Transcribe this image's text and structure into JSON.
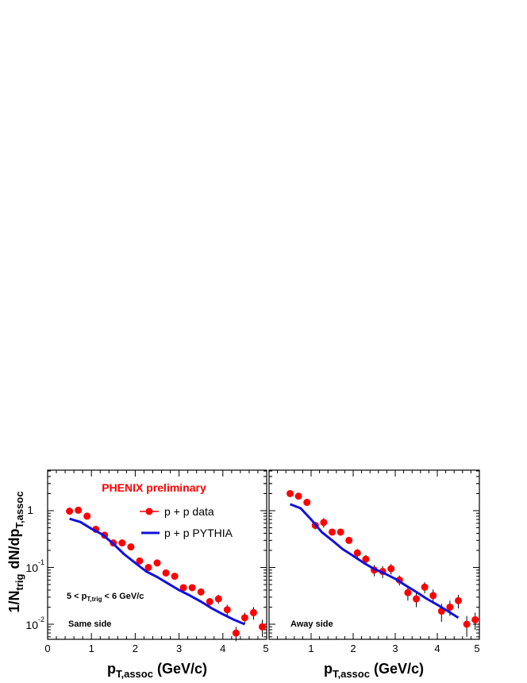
{
  "chart_data": [
    {
      "type": "scatter",
      "panel": "Same side",
      "title": "",
      "xlabel": "p_T,assoc (GeV/c)",
      "ylabel": "1/N_trig dN/dp_T,assoc",
      "xlim": [
        0,
        5
      ],
      "ylim": [
        0.005,
        5
      ],
      "yscale": "log",
      "xticks": [
        "0",
        "1",
        "2",
        "3",
        "4",
        "5"
      ],
      "yticks": [
        "10^-2",
        "10^-1",
        "1"
      ],
      "annotations": {
        "experiment": "PHENIX preliminary",
        "trigger_cut": "5 < p_T,trig < 6 GeV/c",
        "side": "Same side"
      },
      "legend": {
        "placement": "top-right",
        "entries": [
          "p + p data",
          "p + p PYTHIA"
        ]
      },
      "series": [
        {
          "name": "p + p data",
          "kind": "points",
          "color": "#ff0000",
          "x": [
            0.5,
            0.7,
            0.9,
            1.1,
            1.3,
            1.5,
            1.7,
            1.9,
            2.1,
            2.3,
            2.5,
            2.7,
            2.9,
            3.1,
            3.3,
            3.5,
            3.7,
            3.9,
            4.1,
            4.3,
            4.5,
            4.7,
            4.9
          ],
          "y": [
            0.98,
            1.02,
            0.8,
            0.47,
            0.37,
            0.27,
            0.27,
            0.23,
            0.13,
            0.1,
            0.12,
            0.08,
            0.07,
            0.044,
            0.044,
            0.037,
            0.025,
            0.028,
            0.018,
            0.007,
            0.013,
            0.016,
            0.009
          ],
          "err": [
            0,
            0,
            0,
            0,
            0,
            0,
            0,
            0,
            0,
            0,
            0,
            0,
            0,
            0.004,
            0.004,
            0.005,
            0.004,
            0.005,
            0.004,
            0.002,
            0.003,
            0.004,
            0.003
          ]
        },
        {
          "name": "p + p PYTHIA",
          "kind": "line",
          "color": "#1111dd",
          "x": [
            0.5,
            0.75,
            1.0,
            1.25,
            1.5,
            1.75,
            2.0,
            2.25,
            2.5,
            2.75,
            3.0,
            3.25,
            3.5,
            3.75,
            4.0,
            4.25,
            4.5
          ],
          "y": [
            0.72,
            0.63,
            0.48,
            0.38,
            0.26,
            0.17,
            0.12,
            0.085,
            0.068,
            0.052,
            0.04,
            0.032,
            0.025,
            0.019,
            0.015,
            0.012,
            0.01
          ]
        }
      ]
    },
    {
      "type": "scatter",
      "panel": "Away side",
      "title": "",
      "xlabel": "p_T,assoc (GeV/c)",
      "ylabel": "",
      "xlim": [
        0,
        5
      ],
      "ylim": [
        0.005,
        5
      ],
      "yscale": "log",
      "xticks": [
        "1",
        "2",
        "3",
        "4",
        "5"
      ],
      "annotations": {
        "side": "Away side"
      },
      "series": [
        {
          "name": "p + p data",
          "kind": "points",
          "color": "#ff0000",
          "x": [
            0.5,
            0.7,
            0.9,
            1.1,
            1.3,
            1.5,
            1.7,
            1.9,
            2.1,
            2.3,
            2.5,
            2.7,
            2.9,
            3.1,
            3.3,
            3.5,
            3.7,
            3.9,
            4.1,
            4.3,
            4.5,
            4.7,
            4.9
          ],
          "y": [
            2.0,
            1.8,
            1.4,
            0.55,
            0.62,
            0.42,
            0.42,
            0.3,
            0.18,
            0.14,
            0.09,
            0.085,
            0.095,
            0.06,
            0.036,
            0.028,
            0.045,
            0.032,
            0.017,
            0.02,
            0.026,
            0.01,
            0.012
          ],
          "err": [
            0,
            0,
            0,
            0.08,
            0.12,
            0.04,
            0.04,
            0.03,
            0.03,
            0.025,
            0.02,
            0.02,
            0.02,
            0.012,
            0.01,
            0.008,
            0.01,
            0.009,
            0.006,
            0.006,
            0.007,
            0.004,
            0.004
          ]
        },
        {
          "name": "p + p PYTHIA",
          "kind": "line",
          "color": "#1111dd",
          "x": [
            0.5,
            0.75,
            1.0,
            1.25,
            1.5,
            1.75,
            2.0,
            2.25,
            2.5,
            2.75,
            3.0,
            3.25,
            3.5,
            3.75,
            4.0,
            4.25,
            4.5
          ],
          "y": [
            1.3,
            1.1,
            0.7,
            0.42,
            0.3,
            0.21,
            0.16,
            0.12,
            0.094,
            0.078,
            0.063,
            0.048,
            0.037,
            0.028,
            0.022,
            0.017,
            0.013
          ]
        }
      ]
    }
  ]
}
